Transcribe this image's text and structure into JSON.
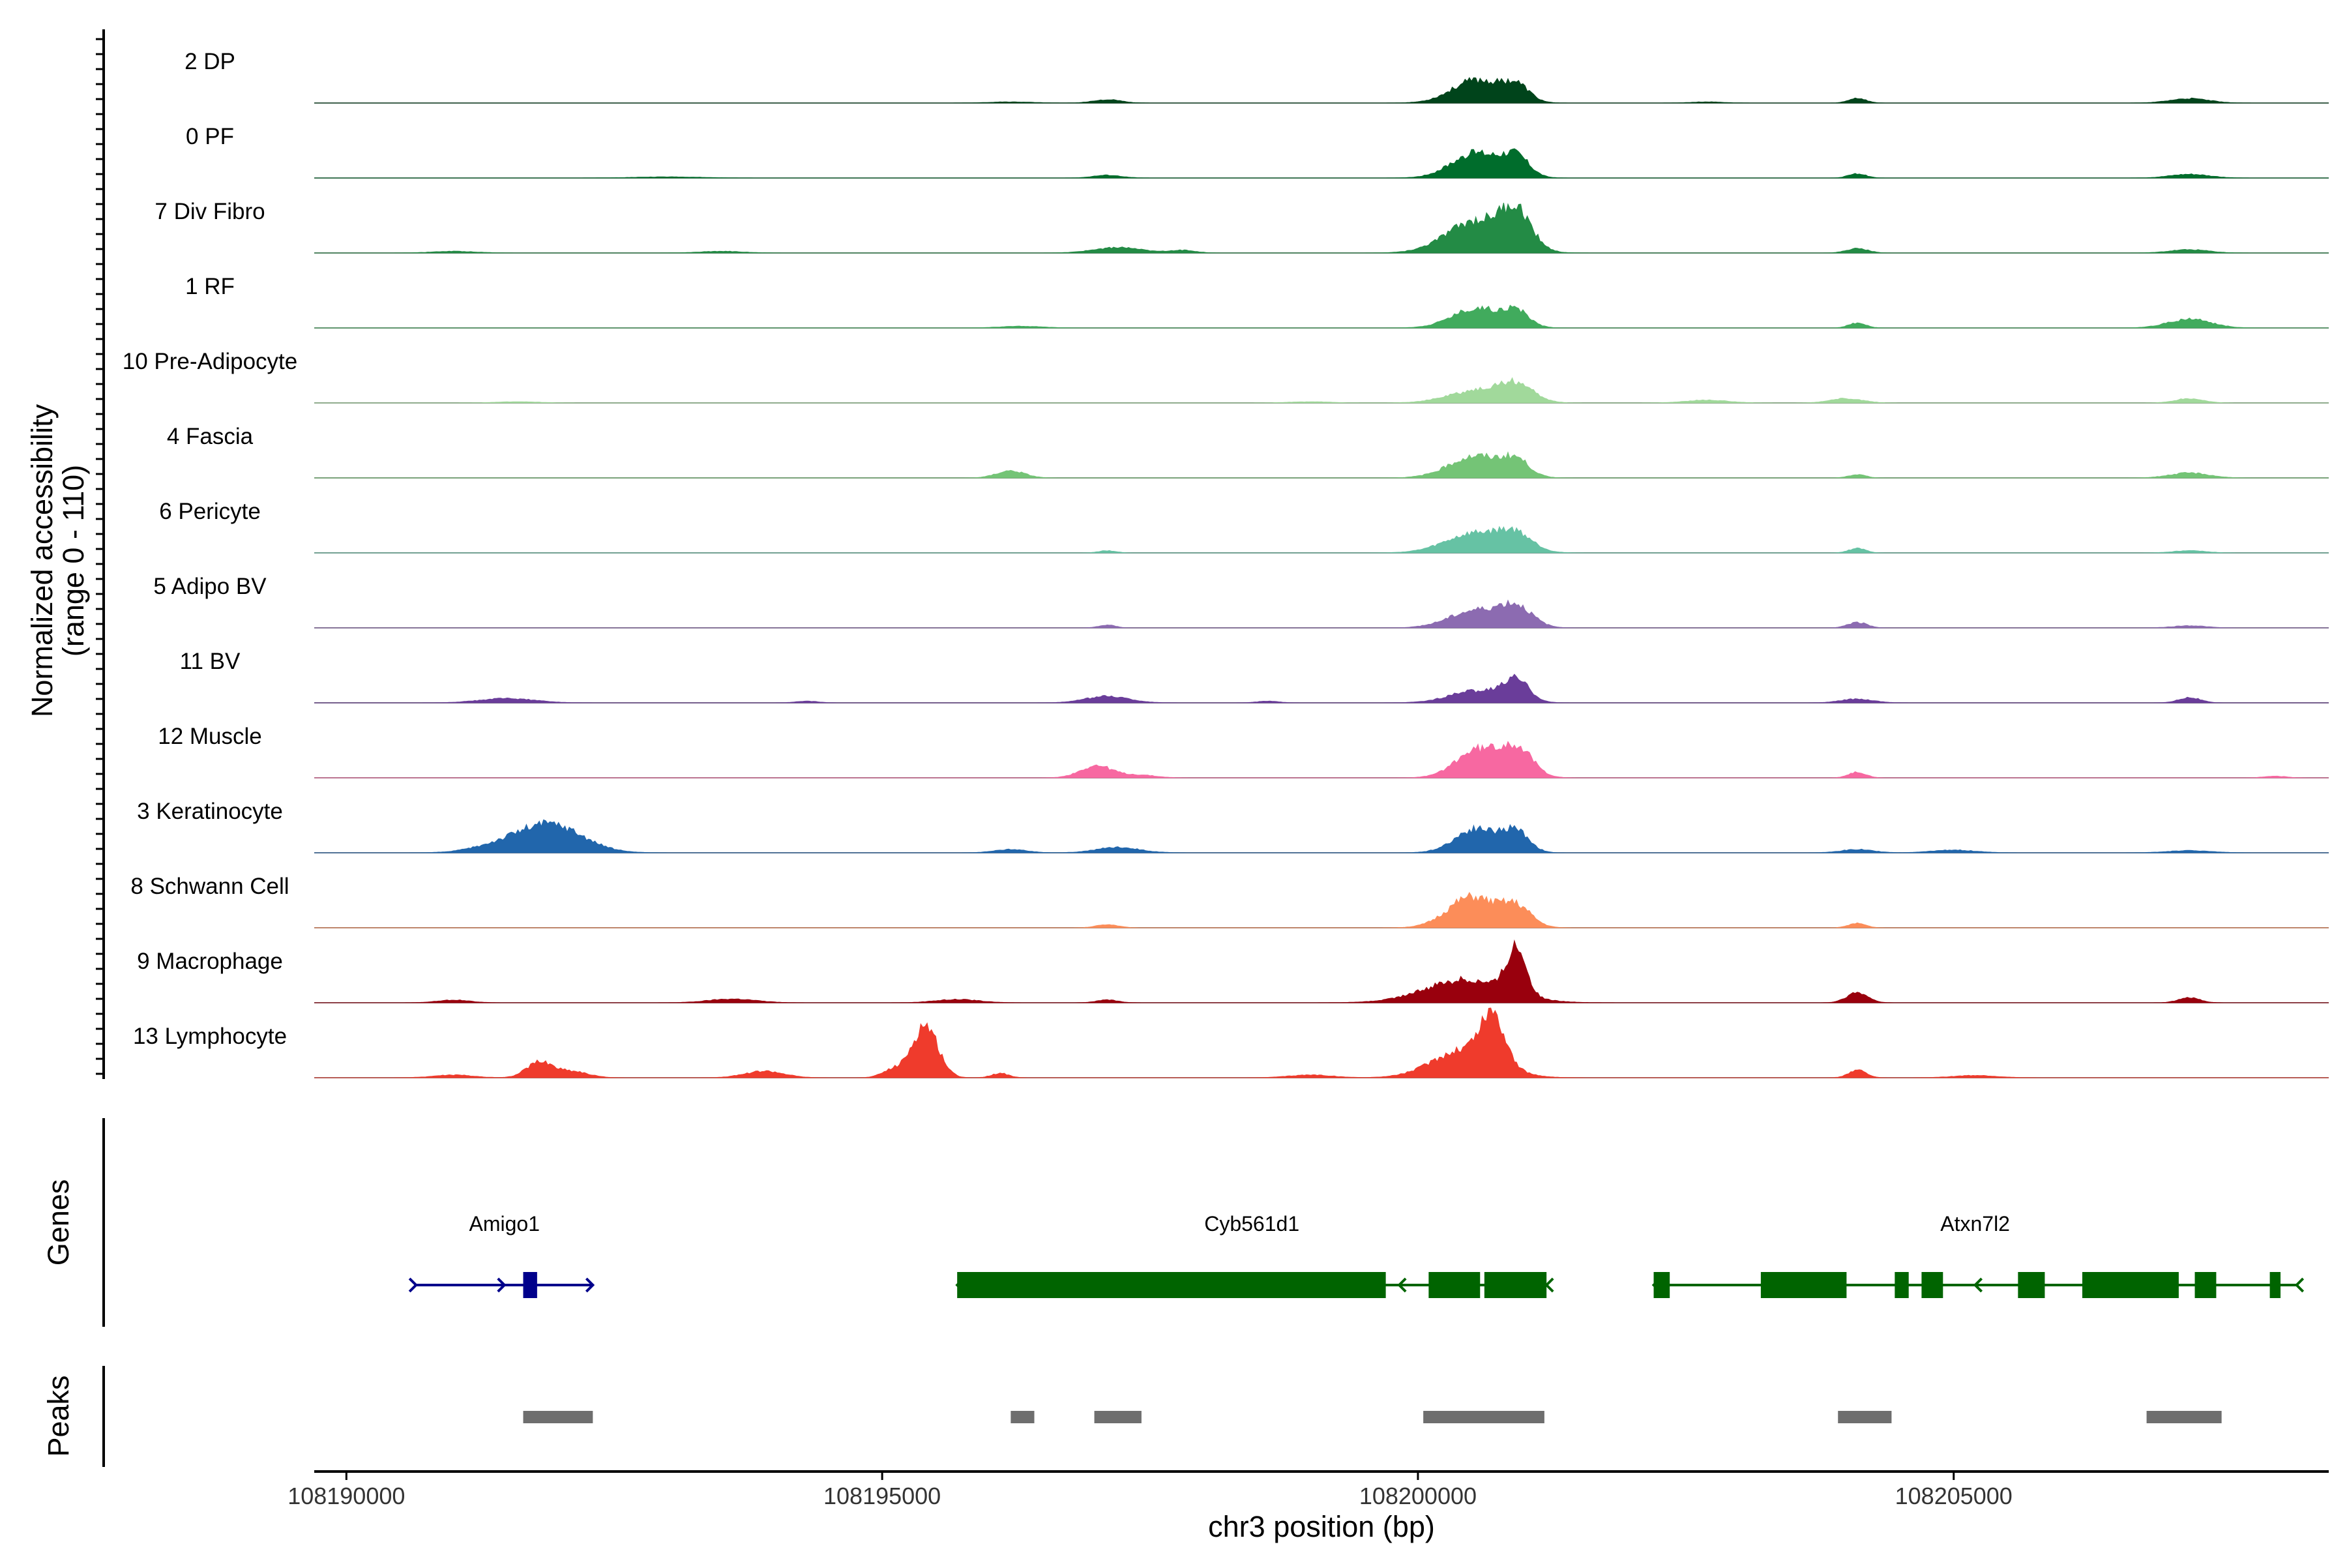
{
  "chart_data": {
    "type": "area",
    "xlabel": "chr3 position (bp)",
    "ylabel_line1": "Normalized accessibility",
    "ylabel_line2": "(range 0 - 110)",
    "yrange": [
      0,
      110
    ],
    "xlim": [
      108189700,
      108208500
    ],
    "xticks": [
      108190000,
      108195000,
      108200000,
      108205000
    ],
    "xtick_labels": [
      "108190000",
      "108195000",
      "108200000",
      "108205000"
    ],
    "tracks": [
      {
        "name": "2 DP",
        "color": "#00441b",
        "peaks": [
          [
            108200550,
            42,
            230
          ],
          [
            108200920,
            28,
            120
          ],
          [
            108197100,
            6,
            130
          ],
          [
            108204100,
            9,
            80
          ],
          [
            108207200,
            8,
            180
          ],
          [
            108196200,
            2,
            200
          ],
          [
            108202700,
            2,
            150
          ]
        ]
      },
      {
        "name": "0 PF",
        "color": "#006d2c",
        "peaks": [
          [
            108200550,
            46,
            230
          ],
          [
            108200920,
            34,
            120
          ],
          [
            108197100,
            5,
            130
          ],
          [
            108204100,
            8,
            80
          ],
          [
            108207200,
            7,
            180
          ],
          [
            108193000,
            2,
            300
          ]
        ]
      },
      {
        "name": "7 Div Fibro",
        "color": "#238b45",
        "peaks": [
          [
            108200550,
            58,
            280
          ],
          [
            108200920,
            62,
            140
          ],
          [
            108197200,
            10,
            220
          ],
          [
            108197800,
            5,
            120
          ],
          [
            108204100,
            8,
            100
          ],
          [
            108207200,
            6,
            180
          ],
          [
            108191000,
            3,
            200
          ],
          [
            108193500,
            3,
            200
          ]
        ]
      },
      {
        "name": "1 RF",
        "color": "#41ab5d",
        "peaks": [
          [
            108200550,
            36,
            230
          ],
          [
            108200920,
            26,
            120
          ],
          [
            108204100,
            9,
            80
          ],
          [
            108207200,
            16,
            200
          ],
          [
            108196300,
            3,
            200
          ]
        ]
      },
      {
        "name": "10 Pre-Adipocyte",
        "color": "#a1d99b",
        "peaks": [
          [
            108200550,
            22,
            270
          ],
          [
            108200920,
            30,
            160
          ],
          [
            108202700,
            5,
            200
          ],
          [
            108204000,
            8,
            150
          ],
          [
            108207200,
            8,
            130
          ],
          [
            108191600,
            2,
            200
          ],
          [
            108199000,
            2,
            200
          ]
        ]
      },
      {
        "name": "4 Fascia",
        "color": "#74c476",
        "peaks": [
          [
            108200550,
            40,
            250
          ],
          [
            108200920,
            26,
            120
          ],
          [
            108196200,
            13,
            130
          ],
          [
            108204100,
            6,
            80
          ],
          [
            108207200,
            9,
            180
          ]
        ]
      },
      {
        "name": "6 Pericyte",
        "color": "#66c2a4",
        "peaks": [
          [
            108200550,
            36,
            280
          ],
          [
            108200920,
            26,
            150
          ],
          [
            108197100,
            4,
            80
          ],
          [
            108204100,
            8,
            80
          ],
          [
            108207200,
            4,
            150
          ]
        ]
      },
      {
        "name": "5 Adipo BV",
        "color": "#8c6bb1",
        "peaks": [
          [
            108200550,
            32,
            250
          ],
          [
            108200920,
            34,
            150
          ],
          [
            108197100,
            5,
            80
          ],
          [
            108204100,
            10,
            90
          ],
          [
            108207200,
            4,
            150
          ]
        ]
      },
      {
        "name": "11 BV",
        "color": "#6a3d9a",
        "peaks": [
          [
            108200550,
            22,
            250
          ],
          [
            108200920,
            38,
            120
          ],
          [
            108197100,
            12,
            200
          ],
          [
            108191500,
            8,
            250
          ],
          [
            108204100,
            7,
            150
          ],
          [
            108207200,
            10,
            100
          ],
          [
            108194300,
            3,
            100
          ],
          [
            108198600,
            3,
            100
          ]
        ]
      },
      {
        "name": "12 Muscle",
        "color": "#f768a1",
        "peaks": [
          [
            108200550,
            50,
            200
          ],
          [
            108200920,
            52,
            150
          ],
          [
            108197000,
            22,
            150
          ],
          [
            108197400,
            5,
            150
          ],
          [
            108204100,
            10,
            80
          ],
          [
            108208000,
            3,
            100
          ]
        ]
      },
      {
        "name": "3 Keratinocyte",
        "color": "#2166ac",
        "peaks": [
          [
            108191900,
            52,
            300
          ],
          [
            108191400,
            10,
            250
          ],
          [
            108200550,
            44,
            200
          ],
          [
            108200920,
            36,
            120
          ],
          [
            108197200,
            10,
            200
          ],
          [
            108196200,
            6,
            150
          ],
          [
            108204100,
            6,
            150
          ],
          [
            108205000,
            5,
            200
          ],
          [
            108207200,
            4,
            200
          ]
        ]
      },
      {
        "name": "8 Schwann Cell",
        "color": "#fc8d59",
        "peaks": [
          [
            108200500,
            56,
            220
          ],
          [
            108200920,
            36,
            140
          ],
          [
            108197100,
            6,
            100
          ],
          [
            108204100,
            8,
            80
          ]
        ]
      },
      {
        "name": "9 Macrophage",
        "color": "#99000d",
        "peaks": [
          [
            108200450,
            42,
            380
          ],
          [
            108200920,
            88,
            90
          ],
          [
            108204100,
            18,
            100
          ],
          [
            108207200,
            9,
            100
          ],
          [
            108193600,
            7,
            220
          ],
          [
            108195700,
            6,
            200
          ],
          [
            108191000,
            5,
            150
          ],
          [
            108197100,
            5,
            100
          ]
        ]
      },
      {
        "name": "13 Lymphocyte",
        "color": "#ef3b2c",
        "peaks": [
          [
            108195400,
            96,
            120
          ],
          [
            108195100,
            14,
            100
          ],
          [
            108200450,
            52,
            300
          ],
          [
            108200700,
            84,
            110
          ],
          [
            108191800,
            28,
            120
          ],
          [
            108192100,
            12,
            150
          ],
          [
            108193900,
            12,
            180
          ],
          [
            108204100,
            14,
            80
          ],
          [
            108196100,
            8,
            80
          ],
          [
            108199000,
            5,
            200
          ],
          [
            108205200,
            4,
            200
          ],
          [
            108191000,
            5,
            180
          ]
        ]
      }
    ],
    "genes": [
      {
        "name": "Amigo1",
        "color": "#00008b",
        "strand": "+",
        "start": 108190650,
        "end": 108192300,
        "exons": [
          [
            108191650,
            108191780
          ]
        ]
      },
      {
        "name": "Cyb561d1",
        "color": "#006400",
        "strand": "-",
        "start": 108195700,
        "end": 108201200,
        "exons": [
          [
            108195700,
            108199700
          ],
          [
            108200100,
            108200580
          ],
          [
            108200620,
            108201200
          ]
        ]
      },
      {
        "name": "Atxn7l2",
        "color": "#006400",
        "strand": "-",
        "start": 108202200,
        "end": 108208200,
        "exons": [
          [
            108202200,
            108202350
          ],
          [
            108203200,
            108204000
          ],
          [
            108204450,
            108204580
          ],
          [
            108204700,
            108204900
          ],
          [
            108205600,
            108205850
          ],
          [
            108206200,
            108207100
          ],
          [
            108207250,
            108207450
          ],
          [
            108207950,
            108208050
          ]
        ]
      }
    ],
    "peak_regions": [
      [
        108191650,
        108192300
      ],
      [
        108196200,
        108196420
      ],
      [
        108196980,
        108197420
      ],
      [
        108200050,
        108201180
      ],
      [
        108203920,
        108204420
      ],
      [
        108206800,
        108207500
      ]
    ],
    "panel_titles": {
      "genes": "Genes",
      "peaks": "Peaks"
    }
  }
}
